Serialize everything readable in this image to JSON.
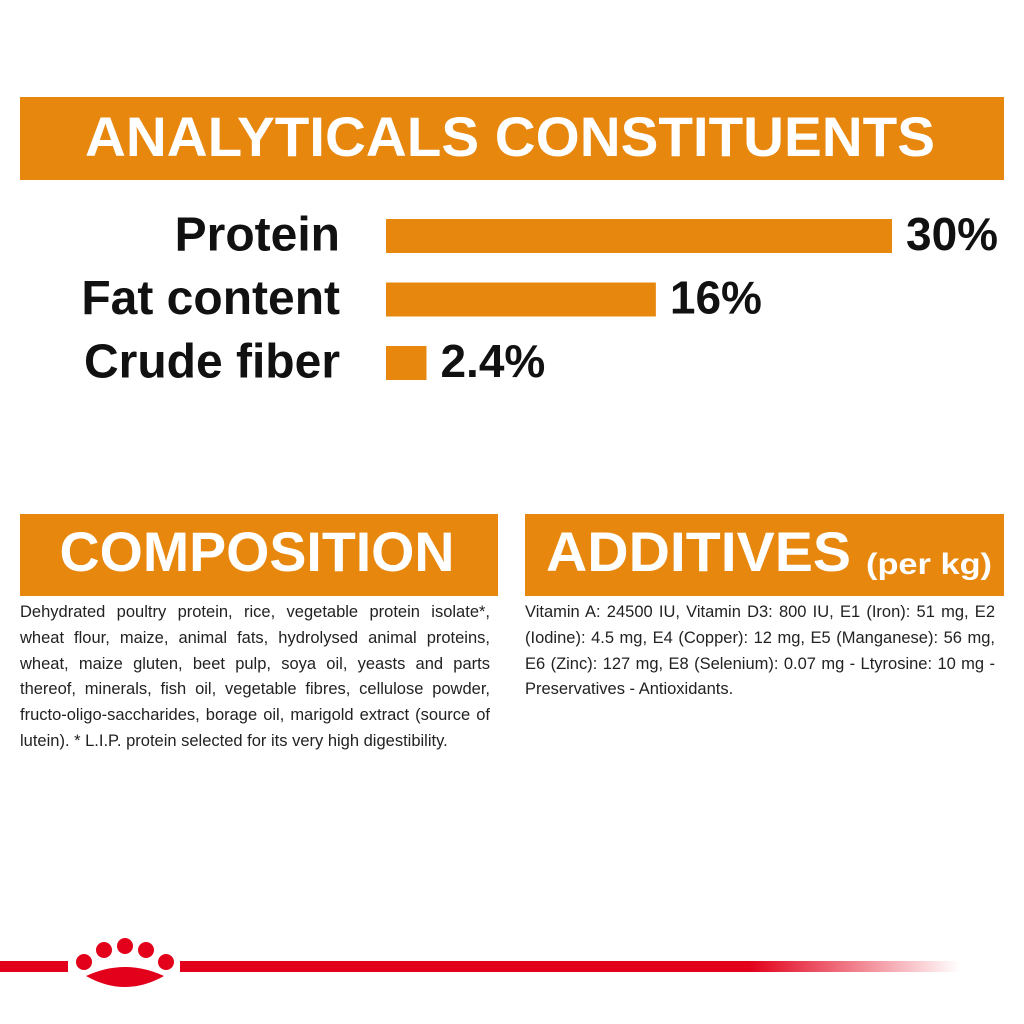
{
  "analyticals": {
    "title": "ANALYTICALS CONSTITUENTS",
    "chart_data": {
      "type": "bar",
      "categories": [
        "Protein",
        "Fat content",
        "Crude fiber"
      ],
      "values": [
        30,
        16,
        2.4
      ],
      "value_labels": [
        "30%",
        "16%",
        "2.4%"
      ],
      "color": "#e8870e"
    }
  },
  "composition": {
    "title": "COMPOSITION",
    "text": "Dehydrated poultry protein, rice, vegetable protein isolate*, wheat flour, maize, animal fats, hydrolysed animal proteins, wheat, maize gluten, beet pulp, soya oil, yeasts and parts thereof, minerals, fish oil, vegetable fibres, cellulose powder, fructo-oligo-saccharides, borage oil, marigold extract (source of lutein). * L.I.P. protein selected for its very high digestibility."
  },
  "additives": {
    "title": "ADDITIVES",
    "subtitle": "(per kg)",
    "text": "Vitamin A: 24500 IU, Vitamin D3: 800 IU, E1 (Iron): 51 mg, E2 (Iodine): 4.5 mg, E4 (Copper): 12 mg, E5 (Manganese): 56 mg, E6 (Zinc): 127 mg, E8 (Selenium): 0.07 mg - Ltyrosine: 10 mg - Preservatives - Antioxidants."
  }
}
